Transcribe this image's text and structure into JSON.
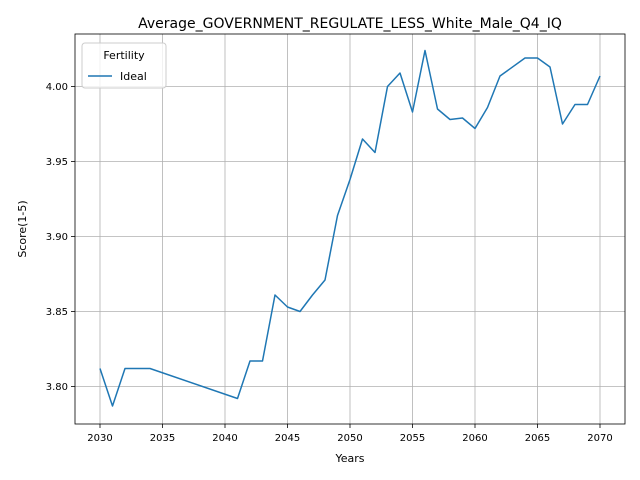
{
  "chart_data": {
    "type": "line",
    "title": "Average_GOVERNMENT_REGULATE_LESS_White_Male_Q4_IQ",
    "xlabel": "Years",
    "ylabel": "Score(1-5)",
    "xlim": [
      2028,
      2072
    ],
    "ylim": [
      3.775,
      4.035
    ],
    "xticks": [
      2030,
      2035,
      2040,
      2045,
      2050,
      2055,
      2060,
      2065,
      2070
    ],
    "yticks": [
      3.8,
      3.85,
      3.9,
      3.95,
      4.0
    ],
    "ytick_labels": [
      "3.80",
      "3.85",
      "3.90",
      "3.95",
      "4.00"
    ],
    "grid": true,
    "legend": {
      "title": "Fertility",
      "position": "top-left"
    },
    "series": [
      {
        "name": "Ideal",
        "color": "#1f77b4",
        "x": [
          2030,
          2031,
          2032,
          2034,
          2041,
          2042,
          2043,
          2044,
          2045,
          2046,
          2047,
          2048,
          2049,
          2050,
          2051,
          2052,
          2053,
          2054,
          2055,
          2056,
          2057,
          2058,
          2059,
          2060,
          2061,
          2062,
          2064,
          2065,
          2066,
          2067,
          2068,
          2069,
          2070
        ],
        "y": [
          3.812,
          3.787,
          3.812,
          3.812,
          3.792,
          3.817,
          3.817,
          3.861,
          3.853,
          3.85,
          3.861,
          3.871,
          3.914,
          3.938,
          3.965,
          3.956,
          4.0,
          4.009,
          3.983,
          4.024,
          3.985,
          3.978,
          3.979,
          3.972,
          3.986,
          4.007,
          4.019,
          4.019,
          4.013,
          3.975,
          3.988,
          3.988,
          4.007
        ]
      }
    ]
  }
}
